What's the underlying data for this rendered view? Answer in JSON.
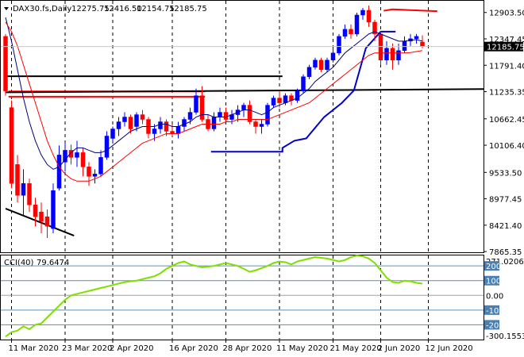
{
  "header": {
    "symbol": "DAX30.fs,Daily",
    "open": "12275.75",
    "high": "12416.50",
    "low": "12154.75",
    "close": "12185.75"
  },
  "indicator": {
    "name": "CCI(40)",
    "value": "79.6474",
    "max_label": "271.0206",
    "min_label": "-300.1553",
    "level_labels": [
      "200",
      "100",
      "0.00",
      "-100",
      "-200"
    ],
    "levels": [
      200,
      100,
      0,
      -100,
      -200
    ],
    "range": [
      -300.1553,
      271.0206
    ]
  },
  "price_axis": {
    "labels": [
      "12903.50",
      "12347.45",
      "11791.40",
      "11235.35",
      "10662.45",
      "10106.40",
      "9533.50",
      "8977.45",
      "8421.40",
      "7865.35"
    ],
    "current_price_label": "12185.75",
    "ylim": [
      7850,
      13150
    ]
  },
  "date_axis": {
    "labels": [
      "11 Mar 2020",
      "23 Mar 2020",
      "2 Apr 2020",
      "16 Apr 2020",
      "28 Apr 2020",
      "11 May 2020",
      "21 May 2020",
      "2 Jun 2020",
      "12 Jun 2020"
    ],
    "label_bar_index": [
      1,
      10,
      18,
      28,
      37,
      46,
      55,
      63,
      71
    ]
  },
  "colors": {
    "bull": "#0000ff",
    "bear": "#ff0000",
    "sma_fast": "#000080",
    "sma_slow": "#ff0000",
    "cci": "#7ee000",
    "band_blue": "#0000cc",
    "band_red": "#ff0000",
    "trend": "#000000",
    "grid": "#000000"
  },
  "chart_data": {
    "type": "candlestick",
    "title": "DAX30.fs,Daily",
    "ylim": [
      7850,
      13150
    ],
    "candles": [
      {
        "o": 12400,
        "h": 12450,
        "l": 11150,
        "c": 11250
      },
      {
        "o": 10900,
        "h": 11050,
        "l": 9200,
        "c": 9300
      },
      {
        "o": 9700,
        "h": 9900,
        "l": 8900,
        "c": 9050
      },
      {
        "o": 9050,
        "h": 9600,
        "l": 8600,
        "c": 9300
      },
      {
        "o": 9300,
        "h": 9400,
        "l": 8700,
        "c": 8850
      },
      {
        "o": 8850,
        "h": 9000,
        "l": 8400,
        "c": 8600
      },
      {
        "o": 8700,
        "h": 8900,
        "l": 8250,
        "c": 8500
      },
      {
        "o": 8600,
        "h": 8750,
        "l": 8150,
        "c": 8400
      },
      {
        "o": 8350,
        "h": 9300,
        "l": 8250,
        "c": 9150
      },
      {
        "o": 9200,
        "h": 10100,
        "l": 9150,
        "c": 9900
      },
      {
        "o": 9750,
        "h": 10150,
        "l": 9550,
        "c": 10000
      },
      {
        "o": 10000,
        "h": 10120,
        "l": 9700,
        "c": 9850
      },
      {
        "o": 9850,
        "h": 10200,
        "l": 9650,
        "c": 9950
      },
      {
        "o": 9950,
        "h": 10050,
        "l": 9450,
        "c": 9650
      },
      {
        "o": 9650,
        "h": 9750,
        "l": 9250,
        "c": 9450
      },
      {
        "o": 9450,
        "h": 9600,
        "l": 9300,
        "c": 9500
      },
      {
        "o": 9500,
        "h": 10000,
        "l": 9450,
        "c": 9850
      },
      {
        "o": 9850,
        "h": 10400,
        "l": 9800,
        "c": 10300
      },
      {
        "o": 10250,
        "h": 10500,
        "l": 10150,
        "c": 10450
      },
      {
        "o": 10450,
        "h": 10700,
        "l": 10300,
        "c": 10600
      },
      {
        "o": 10600,
        "h": 10800,
        "l": 10500,
        "c": 10700
      },
      {
        "o": 10700,
        "h": 10750,
        "l": 10350,
        "c": 10450
      },
      {
        "o": 10500,
        "h": 10800,
        "l": 10400,
        "c": 10750
      },
      {
        "o": 10750,
        "h": 10850,
        "l": 10550,
        "c": 10650
      },
      {
        "o": 10650,
        "h": 10700,
        "l": 10250,
        "c": 10350
      },
      {
        "o": 10350,
        "h": 10550,
        "l": 10200,
        "c": 10450
      },
      {
        "o": 10450,
        "h": 10700,
        "l": 10350,
        "c": 10600
      },
      {
        "o": 10600,
        "h": 10650,
        "l": 10300,
        "c": 10400
      },
      {
        "o": 10400,
        "h": 10550,
        "l": 10300,
        "c": 10350
      },
      {
        "o": 10350,
        "h": 10600,
        "l": 10250,
        "c": 10500
      },
      {
        "o": 10500,
        "h": 10700,
        "l": 10400,
        "c": 10650
      },
      {
        "o": 10650,
        "h": 10900,
        "l": 10550,
        "c": 10800
      },
      {
        "o": 10800,
        "h": 11300,
        "l": 10750,
        "c": 11150
      },
      {
        "o": 11150,
        "h": 11350,
        "l": 10600,
        "c": 10650
      },
      {
        "o": 10650,
        "h": 10750,
        "l": 10400,
        "c": 10450
      },
      {
        "o": 10450,
        "h": 10800,
        "l": 10400,
        "c": 10700
      },
      {
        "o": 10700,
        "h": 10900,
        "l": 10600,
        "c": 10800
      },
      {
        "o": 10800,
        "h": 10900,
        "l": 10600,
        "c": 10650
      },
      {
        "o": 10650,
        "h": 10850,
        "l": 10550,
        "c": 10750
      },
      {
        "o": 10750,
        "h": 10950,
        "l": 10600,
        "c": 10850
      },
      {
        "o": 10850,
        "h": 11000,
        "l": 10700,
        "c": 10950
      },
      {
        "o": 10950,
        "h": 11050,
        "l": 10550,
        "c": 10600
      },
      {
        "o": 10600,
        "h": 10650,
        "l": 10350,
        "c": 10500
      },
      {
        "o": 10500,
        "h": 10650,
        "l": 10350,
        "c": 10550
      },
      {
        "o": 10550,
        "h": 11000,
        "l": 10500,
        "c": 10950
      },
      {
        "o": 10950,
        "h": 11150,
        "l": 10900,
        "c": 11100
      },
      {
        "o": 11100,
        "h": 11250,
        "l": 10900,
        "c": 11000
      },
      {
        "o": 11000,
        "h": 11200,
        "l": 10950,
        "c": 11150
      },
      {
        "o": 11150,
        "h": 11200,
        "l": 10950,
        "c": 11050
      },
      {
        "o": 11050,
        "h": 11300,
        "l": 11000,
        "c": 11250
      },
      {
        "o": 11250,
        "h": 11600,
        "l": 11200,
        "c": 11550
      },
      {
        "o": 11550,
        "h": 11800,
        "l": 11500,
        "c": 11750
      },
      {
        "o": 11750,
        "h": 11950,
        "l": 11700,
        "c": 11900
      },
      {
        "o": 11900,
        "h": 11950,
        "l": 11650,
        "c": 11700
      },
      {
        "o": 11700,
        "h": 11950,
        "l": 11650,
        "c": 11900
      },
      {
        "o": 11900,
        "h": 12150,
        "l": 11850,
        "c": 12050
      },
      {
        "o": 12050,
        "h": 12450,
        "l": 12000,
        "c": 12400
      },
      {
        "o": 12400,
        "h": 12650,
        "l": 12350,
        "c": 12550
      },
      {
        "o": 12550,
        "h": 12650,
        "l": 12350,
        "c": 12450
      },
      {
        "o": 12450,
        "h": 12900,
        "l": 12400,
        "c": 12850
      },
      {
        "o": 12850,
        "h": 13000,
        "l": 12750,
        "c": 12950
      },
      {
        "o": 12950,
        "h": 13050,
        "l": 12600,
        "c": 12700
      },
      {
        "o": 12700,
        "h": 12750,
        "l": 12300,
        "c": 12450
      },
      {
        "o": 12450,
        "h": 12500,
        "l": 11800,
        "c": 11900
      },
      {
        "o": 11900,
        "h": 12300,
        "l": 11800,
        "c": 12150
      },
      {
        "o": 12150,
        "h": 12250,
        "l": 11700,
        "c": 11900
      },
      {
        "o": 11900,
        "h": 12250,
        "l": 11800,
        "c": 12100
      },
      {
        "o": 12100,
        "h": 12400,
        "l": 12050,
        "c": 12300
      },
      {
        "o": 12300,
        "h": 12450,
        "l": 12200,
        "c": 12350
      },
      {
        "o": 12350,
        "h": 12450,
        "l": 12250,
        "c": 12400
      },
      {
        "o": 12280,
        "h": 12420,
        "l": 12150,
        "c": 12190
      }
    ],
    "series": [
      {
        "color": "#000080",
        "values": [
          12800,
          12300,
          11700,
          11100,
          10600,
          10200,
          9900,
          9700,
          9600,
          9650,
          9800,
          9950,
          10050,
          10050,
          10000,
          9950,
          9950,
          10000,
          10100,
          10200,
          10300,
          10400,
          10450,
          10500,
          10500,
          10500,
          10550,
          10550,
          10500,
          10500,
          10550,
          10600,
          10700,
          10750,
          10750,
          10700,
          10700,
          10700,
          10750,
          10800,
          10850,
          10850,
          10800,
          10750,
          10800,
          10900,
          10950,
          11000,
          11050,
          11100,
          11200,
          11300,
          11450,
          11550,
          11650,
          11750,
          11900,
          12050,
          12150,
          12250,
          12350,
          12450,
          12500,
          12450,
          12400,
          12350,
          12300,
          12300,
          12320,
          12330,
          12300
        ]
      },
      {
        "color": "#ff0000",
        "values": [
          12700,
          12500,
          12200,
          11800,
          11400,
          11000,
          10600,
          10200,
          9900,
          9650,
          9500,
          9400,
          9350,
          9350,
          9350,
          9400,
          9450,
          9550,
          9650,
          9750,
          9850,
          9950,
          10050,
          10150,
          10200,
          10250,
          10300,
          10350,
          10350,
          10350,
          10400,
          10450,
          10500,
          10550,
          10550,
          10550,
          10550,
          10600,
          10600,
          10650,
          10650,
          10650,
          10650,
          10650,
          10650,
          10700,
          10750,
          10800,
          10850,
          10900,
          10950,
          11000,
          11100,
          11200,
          11300,
          11400,
          11500,
          11600,
          11700,
          11800,
          11900,
          12000,
          12050,
          12050,
          12050,
          12050,
          12050,
          12050,
          12060,
          12080,
          12100
        ]
      }
    ],
    "cci": [
      -280,
      -250,
      -240,
      -210,
      -230,
      -200,
      -190,
      -150,
      -110,
      -70,
      -30,
      0,
      10,
      20,
      30,
      40,
      50,
      60,
      70,
      80,
      90,
      95,
      100,
      110,
      120,
      130,
      150,
      180,
      200,
      220,
      230,
      210,
      200,
      190,
      195,
      200,
      210,
      220,
      210,
      200,
      180,
      160,
      170,
      185,
      200,
      220,
      230,
      225,
      210,
      230,
      240,
      250,
      260,
      255,
      250,
      240,
      230,
      240,
      260,
      270,
      265,
      250,
      220,
      170,
      120,
      90,
      85,
      100,
      95,
      85,
      80
    ]
  }
}
